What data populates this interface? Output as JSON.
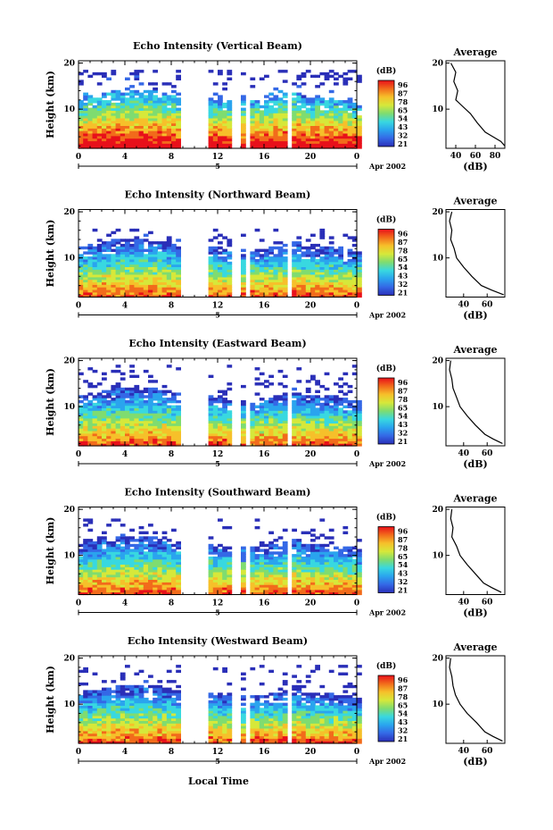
{
  "figure": {
    "xlabel": "Local Time",
    "date_label": "Apr 2002",
    "day_label": "5"
  },
  "colorbar": {
    "unit": "(dB)",
    "labels": [
      "96",
      "87",
      "78",
      "65",
      "54",
      "43",
      "32",
      "21"
    ],
    "colors": [
      "#e8101a",
      "#f26b1b",
      "#f6c02a",
      "#d6e83a",
      "#7fdc70",
      "#38d8e0",
      "#2aa4ee",
      "#3468e6",
      "#2a2fb8"
    ]
  },
  "chart_data": [
    {
      "type": "heatmap",
      "title": "Echo Intensity (Vertical Beam)",
      "xlabel": "",
      "ylabel": "Height (km)",
      "x_ticks": [
        "0",
        "4",
        "8",
        "12",
        "16",
        "20",
        "0"
      ],
      "y_ticks": [
        "20",
        "10"
      ],
      "x_range": [
        0,
        24
      ],
      "y_range": [
        1.5,
        20.5
      ],
      "data_gaps_hours": [
        [
          9,
          11.2
        ],
        [
          13.4,
          13.7
        ],
        [
          14.3,
          14.6
        ],
        [
          18.2,
          18.4
        ]
      ],
      "echo_top_km": 18.5,
      "average_profile": {
        "title": "Average",
        "xlabel": "(dB)",
        "x_ticks": [
          "40",
          "60",
          "80"
        ],
        "y_ticks": [
          "20",
          "10"
        ],
        "x_range": [
          30,
          90
        ],
        "points": [
          [
            35,
            20
          ],
          [
            40,
            18
          ],
          [
            38,
            16
          ],
          [
            42,
            14
          ],
          [
            40,
            12
          ],
          [
            45,
            11
          ],
          [
            55,
            9
          ],
          [
            62,
            7
          ],
          [
            70,
            5
          ],
          [
            78,
            4
          ],
          [
            86,
            3
          ],
          [
            90,
            2
          ]
        ]
      }
    },
    {
      "type": "heatmap",
      "title": "Echo Intensity (Northward Beam)",
      "xlabel": "",
      "ylabel": "Height (km)",
      "x_ticks": [
        "0",
        "4",
        "8",
        "12",
        "16",
        "20",
        "0"
      ],
      "y_ticks": [
        "20",
        "10"
      ],
      "x_range": [
        0,
        24
      ],
      "y_range": [
        1.5,
        20.5
      ],
      "data_gaps_hours": [
        [
          9,
          11.2
        ],
        [
          13.4,
          13.7
        ],
        [
          14.3,
          14.6
        ],
        [
          18.2,
          18.4
        ]
      ],
      "echo_top_km": 16,
      "average_profile": {
        "title": "Average",
        "xlabel": "(dB)",
        "x_ticks": [
          "40",
          "60"
        ],
        "y_ticks": [
          "20",
          "10"
        ],
        "x_range": [
          25,
          75
        ],
        "points": [
          [
            30,
            20
          ],
          [
            28,
            18
          ],
          [
            30,
            16
          ],
          [
            29,
            14
          ],
          [
            32,
            12
          ],
          [
            34,
            10
          ],
          [
            40,
            8
          ],
          [
            47,
            6
          ],
          [
            55,
            4
          ],
          [
            64,
            3
          ],
          [
            74,
            2
          ]
        ]
      }
    },
    {
      "type": "heatmap",
      "title": "Echo Intensity (Eastward Beam)",
      "xlabel": "",
      "ylabel": "Height (km)",
      "x_ticks": [
        "0",
        "4",
        "8",
        "12",
        "16",
        "20",
        "0"
      ],
      "y_ticks": [
        "20",
        "10"
      ],
      "x_range": [
        0,
        24
      ],
      "y_range": [
        1.5,
        20.5
      ],
      "data_gaps_hours": [
        [
          9,
          11.2
        ],
        [
          13.4,
          13.7
        ],
        [
          14.3,
          14.6
        ],
        [
          18.2,
          18.4
        ]
      ],
      "echo_top_km": 19,
      "average_profile": {
        "title": "Average",
        "xlabel": "(dB)",
        "x_ticks": [
          "40",
          "60"
        ],
        "y_ticks": [
          "20",
          "10"
        ],
        "x_range": [
          25,
          75
        ],
        "points": [
          [
            29,
            20
          ],
          [
            28,
            18
          ],
          [
            30,
            16
          ],
          [
            31,
            14
          ],
          [
            34,
            12
          ],
          [
            37,
            10
          ],
          [
            43,
            8
          ],
          [
            50,
            6
          ],
          [
            58,
            4
          ],
          [
            65,
            3
          ],
          [
            73,
            2
          ]
        ]
      }
    },
    {
      "type": "heatmap",
      "title": "Echo Intensity (Southward Beam)",
      "xlabel": "",
      "ylabel": "Height (km)",
      "x_ticks": [
        "0",
        "4",
        "8",
        "12",
        "16",
        "20",
        "0"
      ],
      "y_ticks": [
        "20",
        "10"
      ],
      "x_range": [
        0,
        24
      ],
      "y_range": [
        1.5,
        20.5
      ],
      "data_gaps_hours": [
        [
          9,
          11.2
        ],
        [
          13.4,
          13.7
        ],
        [
          14.3,
          14.6
        ],
        [
          18.2,
          18.4
        ]
      ],
      "echo_top_km": 18,
      "average_profile": {
        "title": "Average",
        "xlabel": "(dB)",
        "x_ticks": [
          "40",
          "60"
        ],
        "y_ticks": [
          "20",
          "10"
        ],
        "x_range": [
          25,
          75
        ],
        "points": [
          [
            30,
            20
          ],
          [
            29,
            18
          ],
          [
            31,
            16
          ],
          [
            30,
            14
          ],
          [
            34,
            12
          ],
          [
            37,
            10
          ],
          [
            43,
            8
          ],
          [
            50,
            6
          ],
          [
            57,
            4
          ],
          [
            64,
            3
          ],
          [
            72,
            2
          ]
        ]
      }
    },
    {
      "type": "heatmap",
      "title": "Echo Intensity (Westward Beam)",
      "xlabel": "",
      "ylabel": "Height (km)",
      "x_ticks": [
        "0",
        "4",
        "8",
        "12",
        "16",
        "20",
        "0"
      ],
      "y_ticks": [
        "20",
        "10"
      ],
      "x_range": [
        0,
        24
      ],
      "y_range": [
        1.5,
        20.5
      ],
      "data_gaps_hours": [
        [
          9,
          11.2
        ],
        [
          13.4,
          13.7
        ],
        [
          14.3,
          14.6
        ],
        [
          18.2,
          18.4
        ]
      ],
      "echo_top_km": 18.5,
      "average_profile": {
        "title": "Average",
        "xlabel": "(dB)",
        "x_ticks": [
          "40",
          "60"
        ],
        "y_ticks": [
          "20",
          "10"
        ],
        "x_range": [
          25,
          75
        ],
        "points": [
          [
            29,
            20
          ],
          [
            28,
            18
          ],
          [
            30,
            16
          ],
          [
            31,
            14
          ],
          [
            33,
            12
          ],
          [
            37,
            10
          ],
          [
            43,
            8
          ],
          [
            51,
            6
          ],
          [
            58,
            4
          ],
          [
            65,
            3
          ],
          [
            73,
            2
          ]
        ]
      }
    }
  ]
}
